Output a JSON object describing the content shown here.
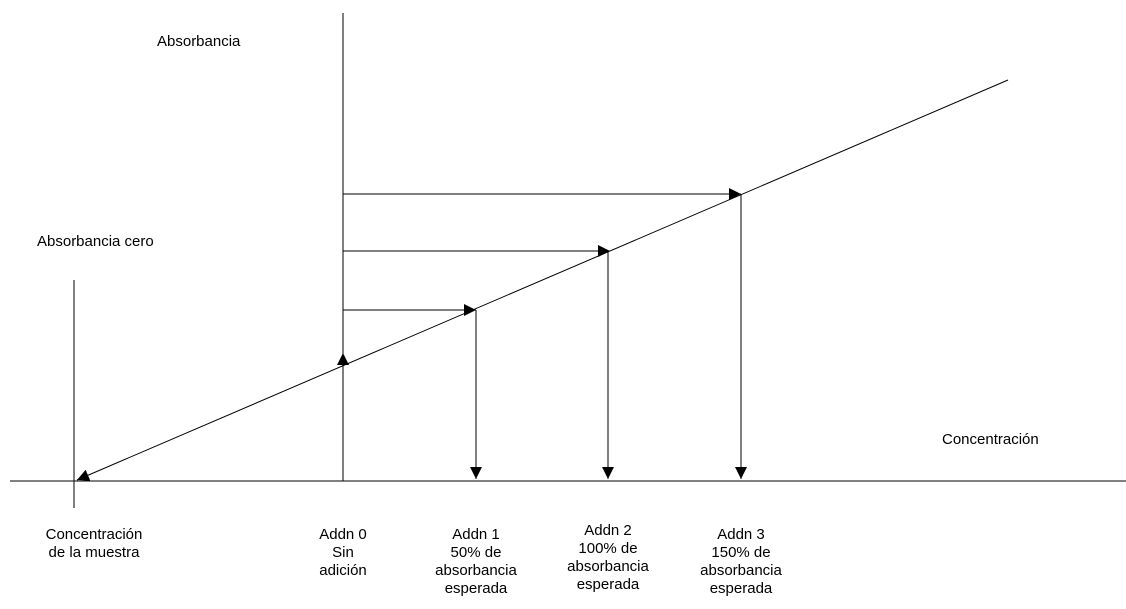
{
  "labels": {
    "y_axis": "Absorbancia",
    "x_axis": "Concentración",
    "zero_absorbance": "Absorbancia cero",
    "sample_concentration": [
      "Concentración",
      "de la muestra"
    ],
    "addn0": [
      "Addn 0",
      "Sin",
      "adición"
    ],
    "addn1": [
      "Addn 1",
      "50% de",
      "absorbancia",
      "esperada"
    ],
    "addn2": [
      "Addn 2",
      "100% de",
      "absorbancia",
      "esperada"
    ],
    "addn3": [
      "Addn 3",
      "150% de",
      "absorbancia",
      "esperada"
    ]
  },
  "colors": {
    "stroke": "#000000",
    "background": "#ffffff"
  }
}
